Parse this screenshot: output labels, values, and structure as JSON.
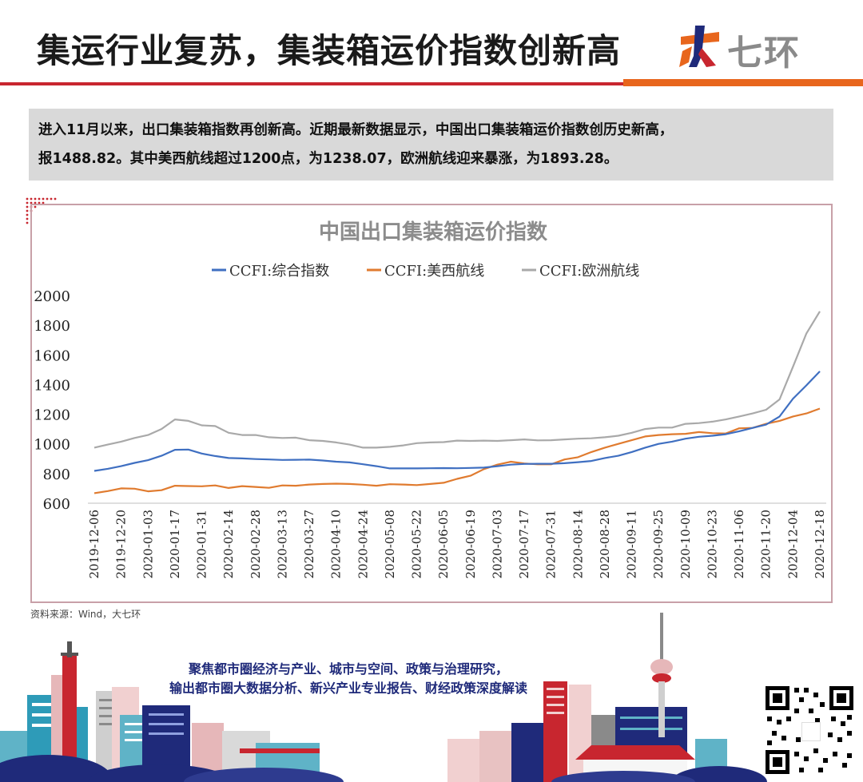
{
  "header": {
    "title": "集运行业复苏，集装箱运价指数创新高",
    "brand_name": "七环",
    "brand_mark_icon": "daqihuan-logo-icon"
  },
  "summary": {
    "line1": "进入11月以来，出口集装箱指数再创新高。近期最新数据显示，中国出口集装箱运价指数创历史新高，",
    "line2": "报1488.82。其中美西航线超过1200点，为1238.07，欧洲航线迎来暴涨，为1893.28。"
  },
  "source_note": "资料来源：Wind，大七环",
  "footer": {
    "slogan_line1": "聚焦都市圈经济与产业、城市与空间、政策与治理研究，",
    "slogan_line2": "输出都市圈大数据分析、新兴产业专业报告、财经政策深度解读",
    "qr_icon": "qr-code-icon"
  },
  "colors": {
    "accent_red": "#c8262f",
    "accent_orange": "#e8661d",
    "composite": "#3f6fc1",
    "us_west": "#e07b2f",
    "europe": "#a9a9a9"
  },
  "chart_data": {
    "type": "line",
    "title": "中国出口集装箱运价指数",
    "xlabel": "",
    "ylabel": "",
    "ylim": [
      600,
      2000
    ],
    "yticks": [
      600,
      800,
      1000,
      1200,
      1400,
      1600,
      1800,
      2000
    ],
    "legend_position": "top-center",
    "grid": false,
    "x": [
      "2019-12-06",
      "2019-12-13",
      "2019-12-20",
      "2019-12-27",
      "2020-01-03",
      "2020-01-10",
      "2020-01-17",
      "2020-01-24",
      "2020-01-31",
      "2020-02-07",
      "2020-02-14",
      "2020-02-21",
      "2020-02-28",
      "2020-03-06",
      "2020-03-13",
      "2020-03-20",
      "2020-03-27",
      "2020-04-03",
      "2020-04-10",
      "2020-04-17",
      "2020-04-24",
      "2020-05-01",
      "2020-05-08",
      "2020-05-15",
      "2020-05-22",
      "2020-05-29",
      "2020-06-05",
      "2020-06-12",
      "2020-06-19",
      "2020-06-26",
      "2020-07-03",
      "2020-07-10",
      "2020-07-17",
      "2020-07-24",
      "2020-07-31",
      "2020-08-07",
      "2020-08-14",
      "2020-08-21",
      "2020-08-28",
      "2020-09-04",
      "2020-09-11",
      "2020-09-18",
      "2020-09-25",
      "2020-10-02",
      "2020-10-09",
      "2020-10-16",
      "2020-10-23",
      "2020-10-30",
      "2020-11-06",
      "2020-11-13",
      "2020-11-20",
      "2020-11-27",
      "2020-12-04",
      "2020-12-11",
      "2020-12-18"
    ],
    "tick_labels": [
      "2019-12-06",
      "2019-12-20",
      "2020-01-03",
      "2020-01-17",
      "2020-01-31",
      "2020-02-14",
      "2020-02-28",
      "2020-03-13",
      "2020-03-27",
      "2020-04-10",
      "2020-04-24",
      "2020-05-08",
      "2020-05-22",
      "2020-06-05",
      "2020-06-19",
      "2020-07-03",
      "2020-07-17",
      "2020-07-31",
      "2020-08-14",
      "2020-08-28",
      "2020-09-11",
      "2020-09-25",
      "2020-10-09",
      "2020-10-23",
      "2020-11-06",
      "2020-11-20",
      "2020-12-04",
      "2020-12-18"
    ],
    "series": [
      {
        "name": "CCFI:综合指数",
        "color": "#3f6fc1",
        "values": [
          818,
          832,
          850,
          872,
          890,
          920,
          960,
          962,
          935,
          918,
          905,
          902,
          898,
          895,
          892,
          893,
          894,
          888,
          880,
          875,
          863,
          850,
          835,
          835,
          835,
          836,
          837,
          836,
          838,
          840,
          850,
          860,
          865,
          866,
          866,
          870,
          877,
          885,
          905,
          920,
          945,
          975,
          1000,
          1015,
          1035,
          1048,
          1055,
          1065,
          1085,
          1108,
          1130,
          1185,
          1305,
          1395,
          1488.82
        ]
      },
      {
        "name": "CCFI:美西航线",
        "color": "#e07b2f",
        "values": [
          668,
          682,
          700,
          698,
          680,
          688,
          718,
          716,
          714,
          720,
          703,
          715,
          710,
          704,
          720,
          718,
          726,
          730,
          732,
          730,
          725,
          718,
          728,
          726,
          722,
          730,
          738,
          764,
          785,
          830,
          860,
          880,
          868,
          862,
          862,
          895,
          910,
          945,
          975,
          1000,
          1025,
          1050,
          1060,
          1065,
          1068,
          1080,
          1072,
          1070,
          1105,
          1108,
          1135,
          1155,
          1185,
          1205,
          1238.07
        ]
      },
      {
        "name": "CCFI:欧洲航线",
        "color": "#a9a9a9",
        "values": [
          975,
          995,
          1015,
          1040,
          1060,
          1100,
          1165,
          1155,
          1125,
          1120,
          1075,
          1060,
          1060,
          1045,
          1040,
          1042,
          1025,
          1020,
          1010,
          995,
          975,
          975,
          980,
          990,
          1005,
          1010,
          1012,
          1022,
          1020,
          1022,
          1020,
          1025,
          1030,
          1024,
          1025,
          1030,
          1035,
          1038,
          1045,
          1055,
          1075,
          1100,
          1110,
          1110,
          1135,
          1140,
          1150,
          1165,
          1185,
          1205,
          1230,
          1300,
          1520,
          1745,
          1893.28
        ]
      }
    ]
  }
}
